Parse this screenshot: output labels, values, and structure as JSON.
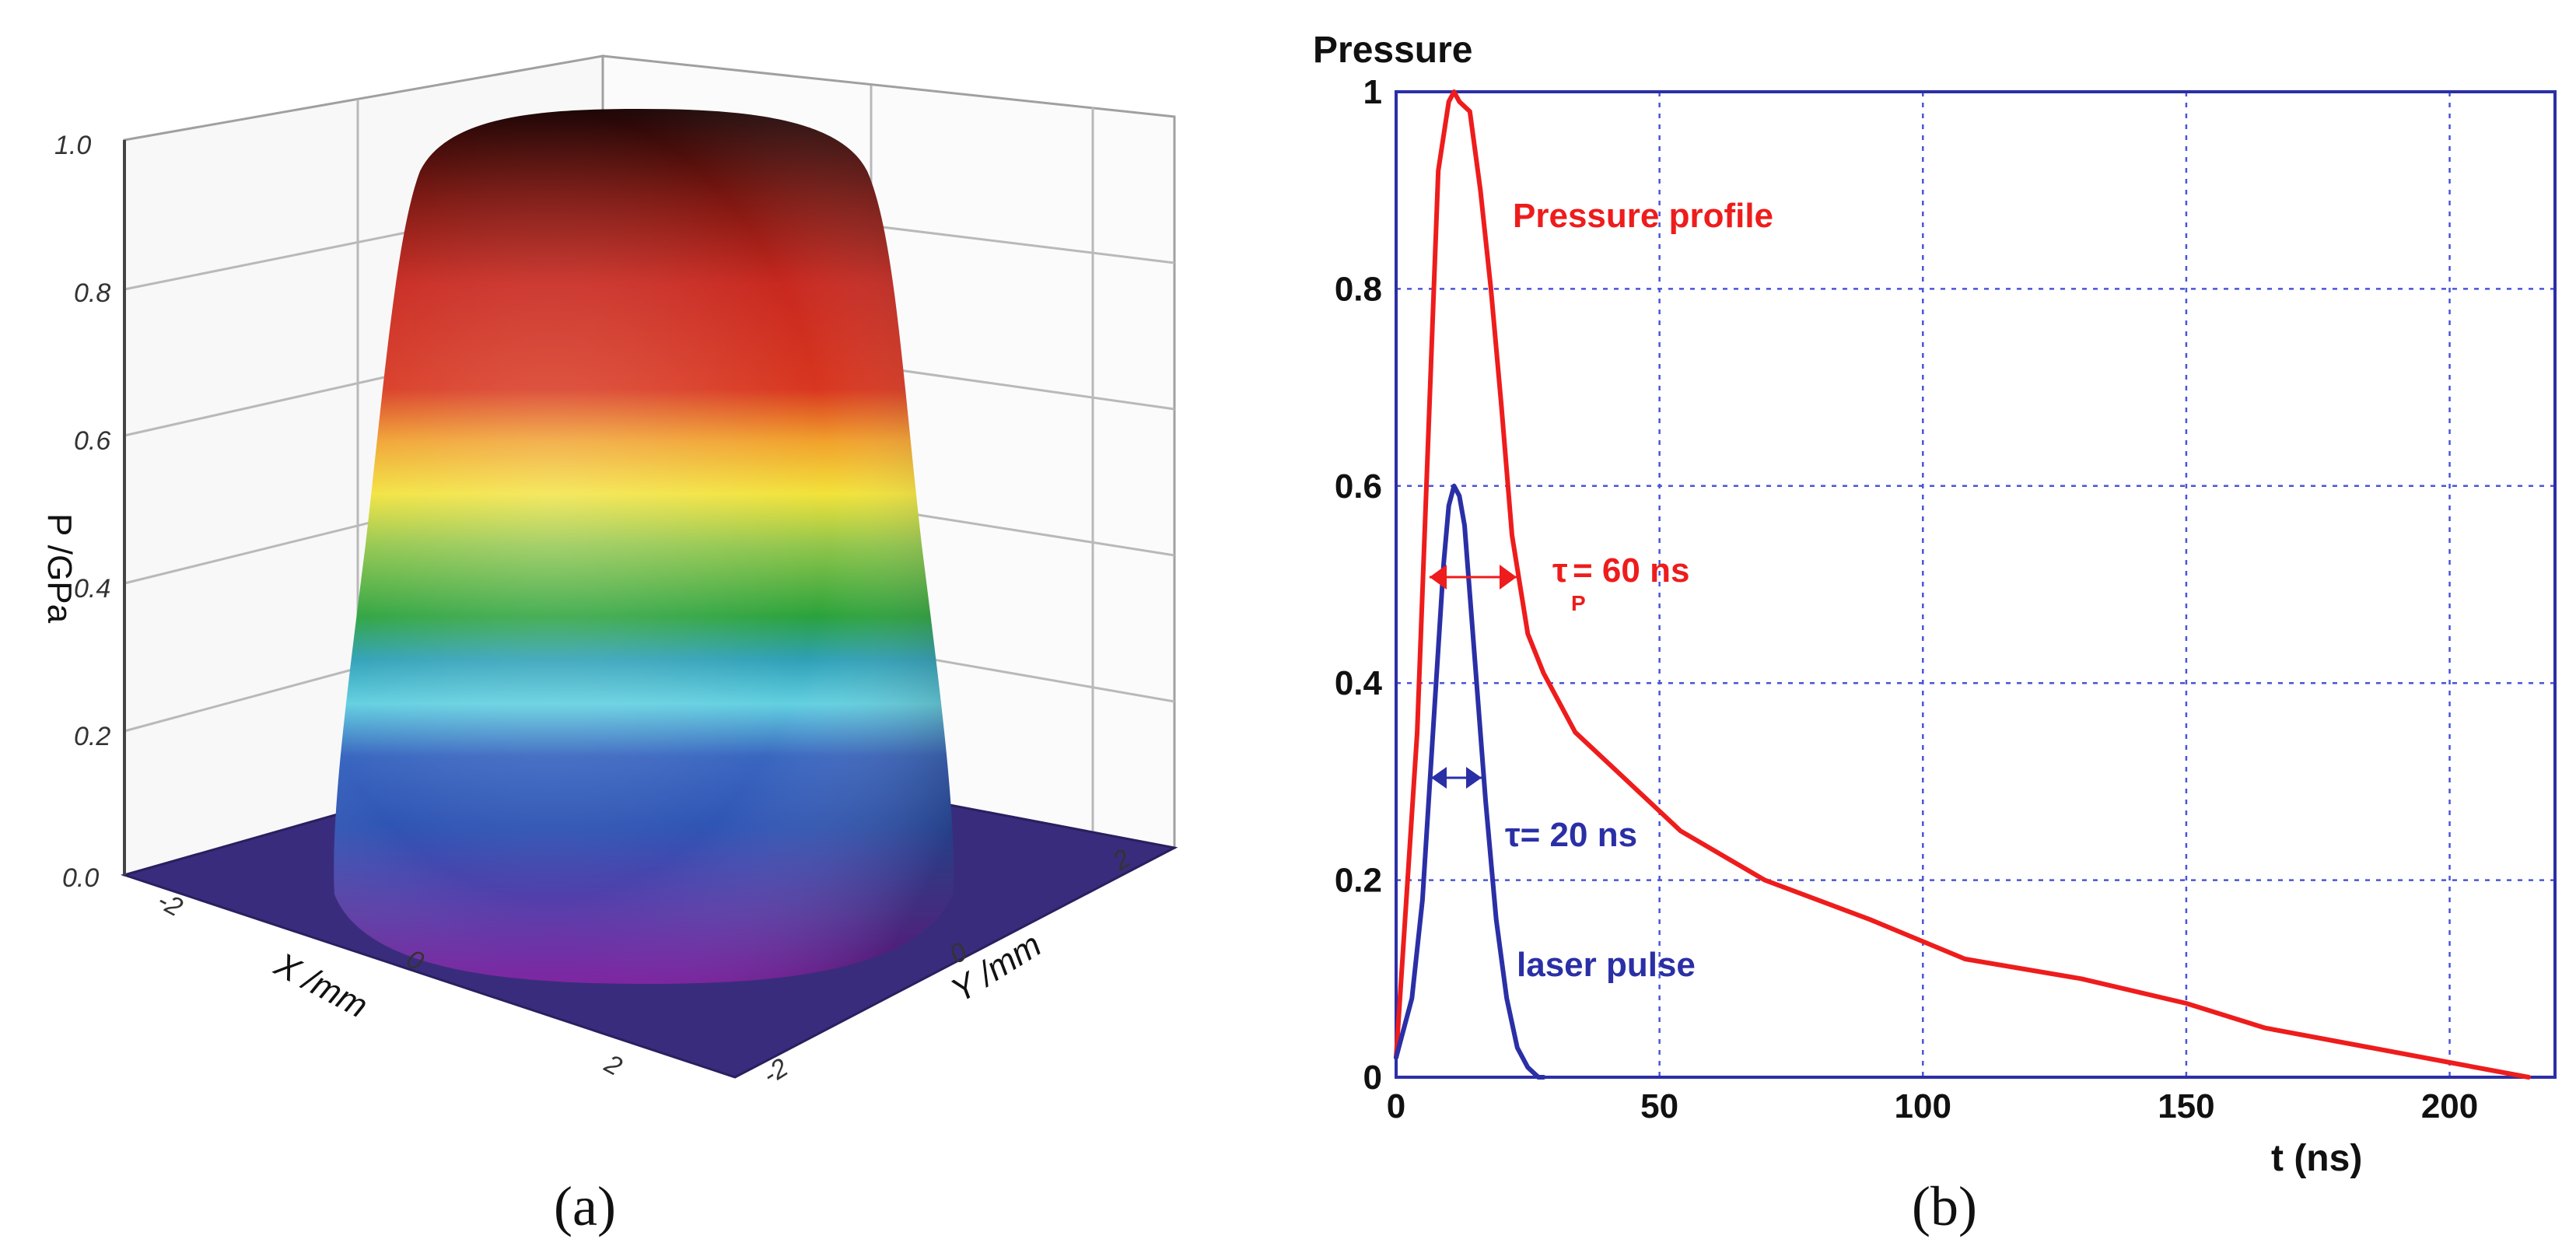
{
  "chart_data": [
    {
      "panel": "(a)",
      "type": "surface3d",
      "zlabel": "P /GPa",
      "xlabel": "X /mm",
      "ylabel": "Y /mm",
      "zticks": [
        "0.0",
        "0.2",
        "0.4",
        "0.6",
        "0.8",
        "1.0"
      ],
      "xticks": [
        "-2",
        "0",
        "2"
      ],
      "yticks": [
        "-2",
        "0",
        "2"
      ],
      "zlim": [
        0,
        1.0
      ],
      "description_values": {
        "plateau_pressure": 1.0,
        "base_pressure": 0.0
      },
      "colormap": [
        "#6a1b9a",
        "#2e4fa8",
        "#38c3d8",
        "#3ba52f",
        "#a9d34a",
        "#f5e33a",
        "#f39a2a",
        "#d7271f",
        "#b3211a",
        "#2a0b0b"
      ]
    },
    {
      "panel": "(b)",
      "type": "line",
      "ylabel": "Pressure",
      "xlabel": "t (ns)",
      "xlim": [
        0,
        220
      ],
      "ylim": [
        0,
        1
      ],
      "xticks": [
        0,
        50,
        100,
        150,
        200
      ],
      "yticks": [
        0,
        0.2,
        0.4,
        0.6,
        0.8,
        1
      ],
      "ytick_labels": [
        "0",
        "0.2",
        "0.4",
        "0.6",
        "0.8",
        "1"
      ],
      "xtick_labels": [
        "0",
        "50",
        "100",
        "150",
        "200"
      ],
      "grid": true,
      "series": [
        {
          "name": "Pressure profile",
          "color": "#ee1c1c",
          "x": [
            0,
            4,
            8,
            10,
            11,
            12,
            14,
            16,
            18,
            20,
            22,
            25,
            28,
            34,
            42,
            54,
            70,
            90,
            108,
            130,
            150,
            165,
            185,
            200,
            215
          ],
          "y": [
            0.02,
            0.35,
            0.92,
            0.99,
            1.0,
            0.99,
            0.98,
            0.9,
            0.8,
            0.68,
            0.55,
            0.45,
            0.41,
            0.35,
            0.31,
            0.25,
            0.2,
            0.16,
            0.12,
            0.1,
            0.075,
            0.05,
            0.03,
            0.015,
            0.0
          ]
        },
        {
          "name": "laser pulse",
          "color": "#2b2fa6",
          "x": [
            0,
            3,
            5,
            7,
            9,
            10,
            11,
            12,
            13,
            15,
            17,
            19,
            21,
            23,
            25,
            27,
            28
          ],
          "y": [
            0.02,
            0.08,
            0.18,
            0.35,
            0.52,
            0.58,
            0.6,
            0.59,
            0.56,
            0.42,
            0.28,
            0.16,
            0.08,
            0.03,
            0.01,
            0.0,
            0.0
          ]
        }
      ],
      "annotations": {
        "pressure_profile": "Pressure profile",
        "tau_p": "τ",
        "tau_p_sub": "P",
        "tau_p_value": "= 60 ns",
        "tau_laser": "τ= 20 ns",
        "laser_pulse": "laser pulse"
      }
    }
  ],
  "captions": {
    "a": "(a)",
    "b": "(b)"
  }
}
